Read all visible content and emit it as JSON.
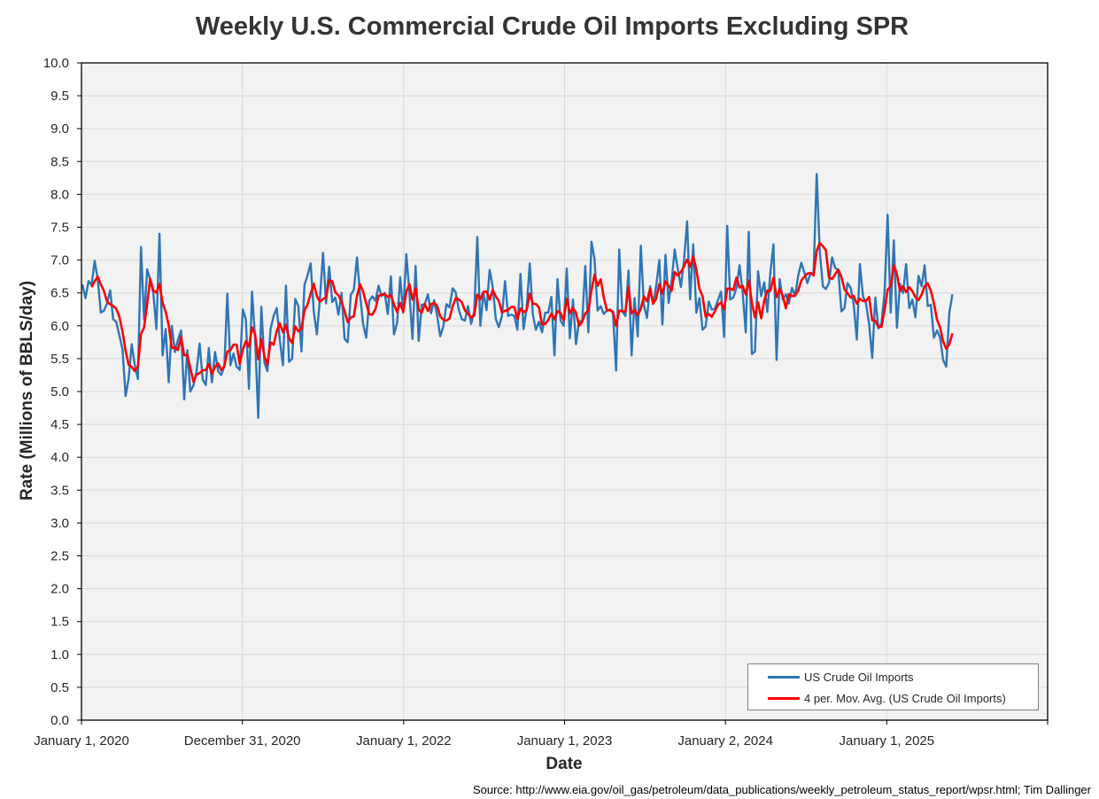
{
  "chart_data": {
    "type": "line",
    "title": "Weekly U.S. Commercial Crude Oil Imports Excluding SPR",
    "xlabel": "Date",
    "ylabel": "Rate (Millions of BBLS/day)",
    "source": "Source: http://www.eia.gov/oil_gas/petroleum/data_publications/weekly_petroleum_status_report/wpsr.html; Tim Dallinger",
    "x_ticks": [
      "January 1, 2020",
      "December 31, 2020",
      "January 1, 2022",
      "January 1, 2023",
      "January 2, 2024",
      "January 1, 2025"
    ],
    "y_ticks": [
      "0.0",
      "0.5",
      "1.0",
      "1.5",
      "2.0",
      "2.5",
      "3.0",
      "3.5",
      "4.0",
      "4.5",
      "5.0",
      "5.5",
      "6.0",
      "6.5",
      "7.0",
      "7.5",
      "8.0",
      "8.5",
      "9.0",
      "9.5",
      "10.0"
    ],
    "ylim": [
      0,
      10
    ],
    "x_start": "2020-01-03",
    "x_interval": "weekly",
    "grid": true,
    "legend_position": "bottom-right",
    "series": [
      {
        "name": "US Crude Oil Imports",
        "color": "#2e75b6",
        "values": [
          6.63,
          6.42,
          6.68,
          6.62,
          6.99,
          6.7,
          6.2,
          6.23,
          6.34,
          6.54,
          6.1,
          6.06,
          5.85,
          5.65,
          4.93,
          5.2,
          5.72,
          5.4,
          5.19,
          7.2,
          6.1,
          6.86,
          6.7,
          6.5,
          5.95,
          7.4,
          5.55,
          5.95,
          5.14,
          6.0,
          5.6,
          5.79,
          5.93,
          4.88,
          5.63,
          5.0,
          5.09,
          5.3,
          5.73,
          5.18,
          5.1,
          5.66,
          5.14,
          5.6,
          5.31,
          5.25,
          5.38,
          6.49,
          5.4,
          5.58,
          5.38,
          5.33,
          6.25,
          6.1,
          5.04,
          6.52,
          5.8,
          4.6,
          6.29,
          5.44,
          5.31,
          5.95,
          6.15,
          6.27,
          5.78,
          5.4,
          6.61,
          5.45,
          5.5,
          6.41,
          6.3,
          5.61,
          6.62,
          6.77,
          6.95,
          6.22,
          5.87,
          6.42,
          7.11,
          6.34,
          6.9,
          6.36,
          6.43,
          6.17,
          6.5,
          5.8,
          5.75,
          6.47,
          6.55,
          7.04,
          6.47,
          6.03,
          5.82,
          6.38,
          6.45,
          6.38,
          6.61,
          6.45,
          6.5,
          6.18,
          6.75,
          5.87,
          6.04,
          6.74,
          6.2,
          7.09,
          6.5,
          5.8,
          6.91,
          5.77,
          6.32,
          6.33,
          6.48,
          6.19,
          6.39,
          6.15,
          5.84,
          5.99,
          6.33,
          6.28,
          6.57,
          6.51,
          6.25,
          6.1,
          6.08,
          6.3,
          6.03,
          6.22,
          7.35,
          6.0,
          6.5,
          6.24,
          6.85,
          6.59,
          6.1,
          5.98,
          6.15,
          6.68,
          6.15,
          6.17,
          6.15,
          5.94,
          6.79,
          5.95,
          6.27,
          6.95,
          6.17,
          5.94,
          6.06,
          5.9,
          6.2,
          6.2,
          6.44,
          5.55,
          6.71,
          6.08,
          6.0,
          6.87,
          5.81,
          6.4,
          5.72,
          6.07,
          6.06,
          6.91,
          5.9,
          7.28,
          7.02,
          6.23,
          6.3,
          6.18,
          6.23,
          6.25,
          6.19,
          5.32,
          7.16,
          6.22,
          6.15,
          6.84,
          5.55,
          6.42,
          5.84,
          7.22,
          6.31,
          6.12,
          6.6,
          6.33,
          6.61,
          7.0,
          6.02,
          7.08,
          6.35,
          6.68,
          7.16,
          6.86,
          6.59,
          7.0,
          7.59,
          6.4,
          7.24,
          6.2,
          6.42,
          5.94,
          5.99,
          6.37,
          6.25,
          6.26,
          6.39,
          6.52,
          5.83,
          7.52,
          6.4,
          6.43,
          6.58,
          6.92,
          6.51,
          5.9,
          7.43,
          5.57,
          5.61,
          6.83,
          6.45,
          6.66,
          6.21,
          6.81,
          7.24,
          5.48,
          6.71,
          6.4,
          6.48,
          6.34,
          6.58,
          6.45,
          6.76,
          6.96,
          6.81,
          6.65,
          6.8,
          6.8,
          8.31,
          7.13,
          6.6,
          6.56,
          6.65,
          7.04,
          6.88,
          6.85,
          6.22,
          6.27,
          6.65,
          6.58,
          6.33,
          5.79,
          6.94,
          6.45,
          6.34,
          6.03,
          5.51,
          6.43,
          5.96,
          6.04,
          6.5,
          7.69,
          6.2,
          7.3,
          5.97,
          6.64,
          6.5,
          6.94,
          6.27,
          6.4,
          6.13,
          6.76,
          6.6,
          6.92,
          6.3,
          6.32,
          5.82,
          5.93,
          5.82,
          5.48,
          5.38,
          6.2,
          6.48
        ]
      },
      {
        "name": "4 per. Mov. Avg. (US Crude Oil Imports)",
        "color": "#ff0000"
      }
    ]
  }
}
